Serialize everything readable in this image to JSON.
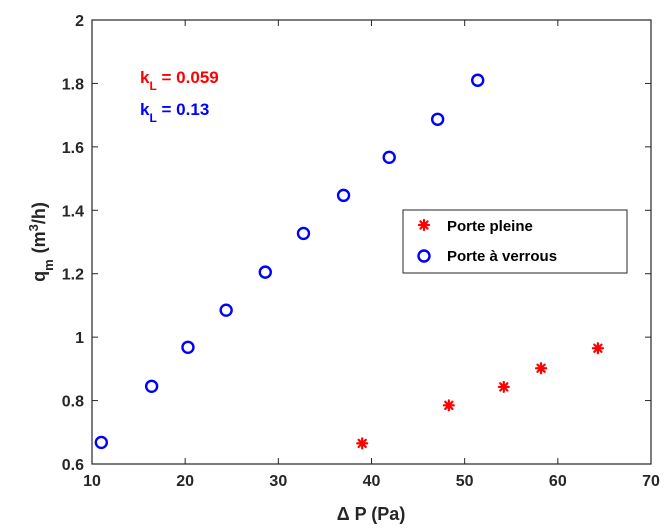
{
  "chart_data": {
    "type": "scatter",
    "title": "",
    "xlabel": "Δ P (Pa)",
    "ylabel": {
      "base": "q",
      "sub": "m",
      "unit_pre": "(m",
      "unit_sup": "3",
      "unit_post": "/h)"
    },
    "xlim": [
      10,
      70
    ],
    "ylim": [
      0.6,
      2
    ],
    "xticks": [
      "10",
      "20",
      "30",
      "40",
      "50",
      "60",
      "70"
    ],
    "yticks": [
      "0.6",
      "0.8",
      "1",
      "1.2",
      "1.4",
      "1.6",
      "1.8",
      "2"
    ],
    "grid": false,
    "legend_position": "center-right",
    "series": [
      {
        "name": "Porte pleine",
        "marker": "asterisk",
        "color": "#ff0000",
        "x": [
          39,
          48.3,
          54.2,
          58.2,
          64.3
        ],
        "y": [
          0.665,
          0.785,
          0.843,
          0.902,
          0.965
        ]
      },
      {
        "name": "Porte à verrous",
        "marker": "circle",
        "color": "#0000ff",
        "x": [
          11,
          16.4,
          20.3,
          24.4,
          28.6,
          32.7,
          37,
          41.9,
          47.1,
          51.4
        ],
        "y": [
          0.668,
          0.845,
          0.968,
          1.085,
          1.205,
          1.327,
          1.447,
          1.567,
          1.687,
          1.81
        ]
      }
    ],
    "annotations": [
      {
        "base": "k",
        "sub": "L",
        "value": " = 0.059",
        "color": "#ff0000"
      },
      {
        "base": "k",
        "sub": "L",
        "value": " = 0.13",
        "color": "#0000ff"
      }
    ]
  }
}
